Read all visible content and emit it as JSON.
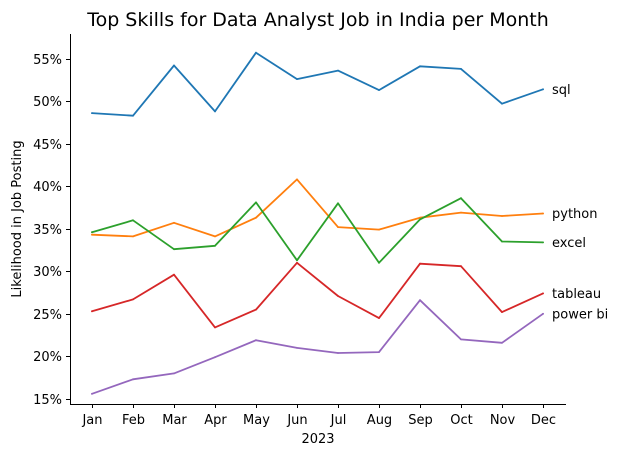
{
  "chart_data": {
    "type": "line",
    "title": "Top Skills for Data Analyst Job in India per Month",
    "xlabel": "2023",
    "ylabel": "Likelihood in Job Posting",
    "categories": [
      "Jan",
      "Feb",
      "Mar",
      "Apr",
      "May",
      "Jun",
      "Jul",
      "Aug",
      "Sep",
      "Oct",
      "Nov",
      "Dec"
    ],
    "ylim": [
      14.4,
      57.9
    ],
    "yticks": [
      15,
      20,
      25,
      30,
      35,
      40,
      45,
      50,
      55
    ],
    "ytick_labels": [
      "15%",
      "20%",
      "25%",
      "30%",
      "35%",
      "40%",
      "45%",
      "50%",
      "55%"
    ],
    "grid": false,
    "legend": "none (series labeled at line ends)",
    "series": [
      {
        "name": "sql",
        "color": "#1f77b4",
        "values": [
          48.6,
          48.3,
          54.2,
          48.8,
          55.7,
          52.6,
          53.6,
          51.3,
          54.1,
          53.8,
          49.7,
          51.4
        ]
      },
      {
        "name": "python",
        "color": "#ff7f0e",
        "values": [
          34.3,
          34.1,
          35.7,
          34.1,
          36.3,
          40.8,
          35.2,
          34.9,
          36.3,
          36.9,
          36.5,
          36.8
        ]
      },
      {
        "name": "excel",
        "color": "#2ca02c",
        "values": [
          34.6,
          36.0,
          32.6,
          33.0,
          38.1,
          31.3,
          38.0,
          31.0,
          36.1,
          38.6,
          33.5,
          33.4
        ]
      },
      {
        "name": "tableau",
        "color": "#d62728",
        "values": [
          25.3,
          26.7,
          29.6,
          23.4,
          25.5,
          31.0,
          27.1,
          24.5,
          30.9,
          30.6,
          25.2,
          27.4
        ]
      },
      {
        "name": "power bi",
        "color": "#9467bd",
        "values": [
          15.6,
          17.3,
          18.0,
          19.9,
          21.9,
          21.0,
          20.4,
          20.5,
          26.6,
          22.0,
          21.6,
          25.0
        ]
      }
    ]
  }
}
